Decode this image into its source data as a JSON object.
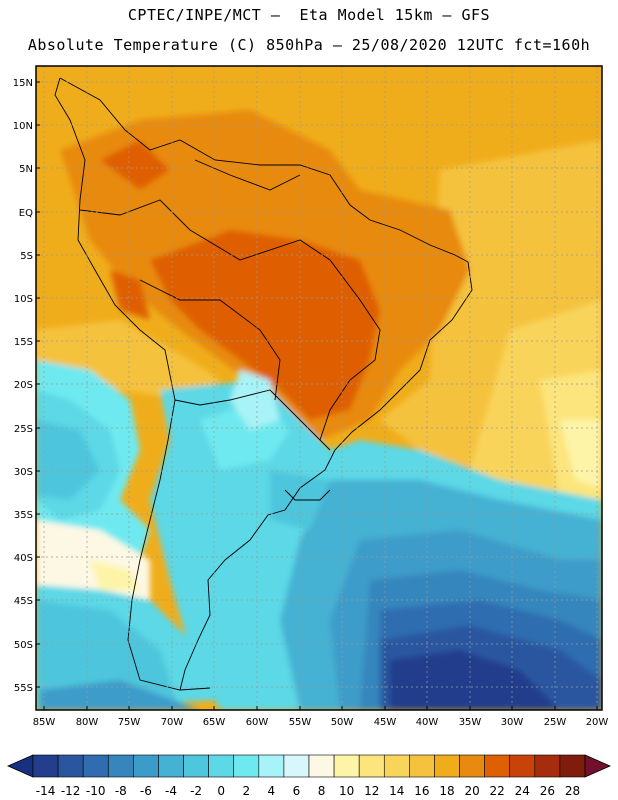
{
  "header": {
    "title_line1": "CPTEC/INPE/MCT –  Eta Model 15km – GFS",
    "title_line2": "Absolute Temperature (C) 850hPa – 25/08/2020 12UTC fct=160h"
  },
  "axes": {
    "lat_labels": [
      "15N",
      "10N",
      "5N",
      "EQ",
      "5S",
      "10S",
      "15S",
      "20S",
      "25S",
      "30S",
      "35S",
      "40S",
      "45S",
      "50S",
      "55S"
    ],
    "lon_labels": [
      "85W",
      "80W",
      "75W",
      "70W",
      "65W",
      "60W",
      "55W",
      "50W",
      "45W",
      "40W",
      "35W",
      "30W",
      "25W",
      "20W"
    ]
  },
  "colorbar": {
    "labels": [
      "-14",
      "-12",
      "-10",
      "-8",
      "-6",
      "-4",
      "-2",
      "0",
      "2",
      "4",
      "6",
      "8",
      "10",
      "12",
      "14",
      "16",
      "18",
      "20",
      "22",
      "24",
      "26",
      "28"
    ],
    "colors": [
      "#233e8c",
      "#2a56a0",
      "#2f6db0",
      "#3686bd",
      "#3c9cc9",
      "#45b1d3",
      "#4ec6dd",
      "#5cd8e6",
      "#6ee9ef",
      "#a8f3f7",
      "#d8f7fb",
      "#fdf8e4",
      "#fdf4a8",
      "#fbe57c",
      "#f9d45a",
      "#f5c23d",
      "#f0ad1b",
      "#e88a10",
      "#df5f05",
      "#c8420a",
      "#a52d0d",
      "#7f1c0b"
    ],
    "low_arrow": "#183080",
    "high_arrow": "#72102e"
  }
}
